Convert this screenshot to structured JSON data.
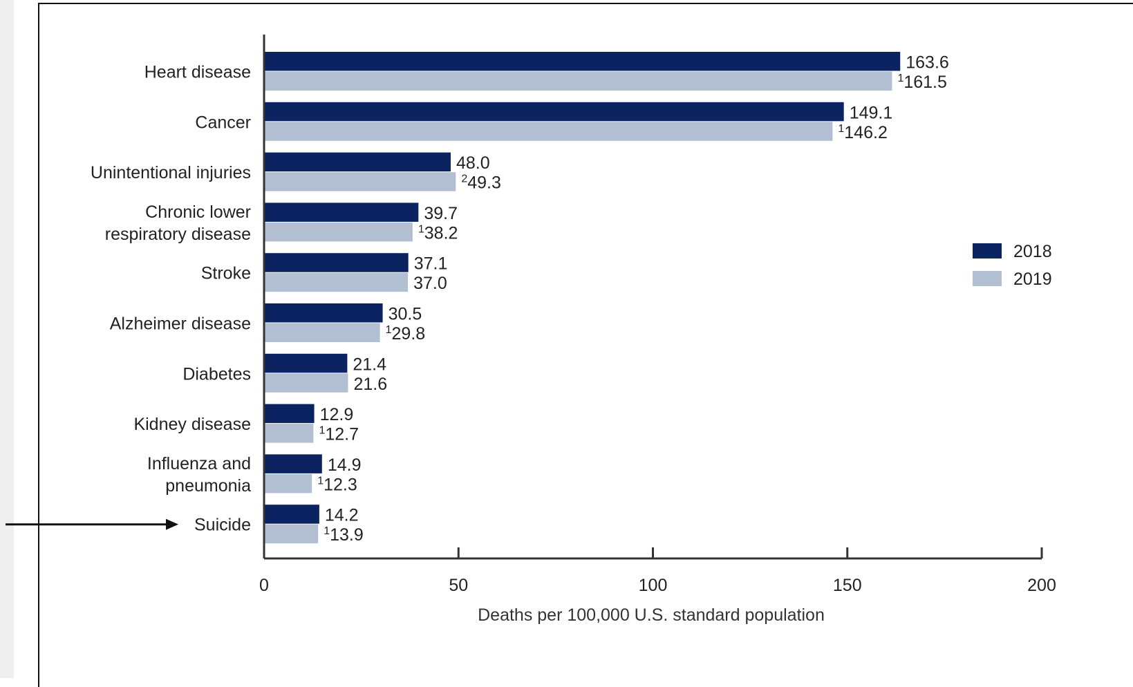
{
  "chart_data": {
    "type": "bar",
    "orientation": "horizontal",
    "categories": [
      [
        "Heart disease"
      ],
      [
        "Cancer"
      ],
      [
        "Unintentional injuries"
      ],
      [
        "Chronic lower",
        "respiratory disease"
      ],
      [
        "Stroke"
      ],
      [
        "Alzheimer disease"
      ],
      [
        "Diabetes"
      ],
      [
        "Kidney disease"
      ],
      [
        "Influenza and",
        "pneumonia"
      ],
      [
        "Suicide"
      ]
    ],
    "series": [
      {
        "name": "2018",
        "color": "#0b2360",
        "values": [
          163.6,
          149.1,
          48.0,
          39.7,
          37.1,
          30.5,
          21.4,
          12.9,
          14.9,
          14.2
        ],
        "labels": [
          "163.6",
          "149.1",
          "48.0",
          "39.7",
          "37.1",
          "30.5",
          "21.4",
          "12.9",
          "14.9",
          "14.2"
        ],
        "footnotes": [
          "",
          "",
          "",
          "",
          "",
          "",
          "",
          "",
          "",
          ""
        ]
      },
      {
        "name": "2019",
        "color": "#b2bfd3",
        "values": [
          161.5,
          146.2,
          49.3,
          38.2,
          37.0,
          29.8,
          21.6,
          12.7,
          12.3,
          13.9
        ],
        "labels": [
          "161.5",
          "146.2",
          "49.3",
          "38.2",
          "37.0",
          "29.8",
          "21.6",
          "12.7",
          "12.3",
          "13.9"
        ],
        "footnotes": [
          "1",
          "1",
          "2",
          "1",
          "",
          "1",
          "",
          "1",
          "1",
          "1"
        ]
      }
    ],
    "xlim": [
      0,
      200
    ],
    "xticks": [
      "0",
      "50",
      "100",
      "150",
      "200"
    ],
    "xlabel": "Deaths per 100,000 U.S. standard population",
    "legend_position": "right",
    "annotation": "arrow pointing to Suicide"
  }
}
